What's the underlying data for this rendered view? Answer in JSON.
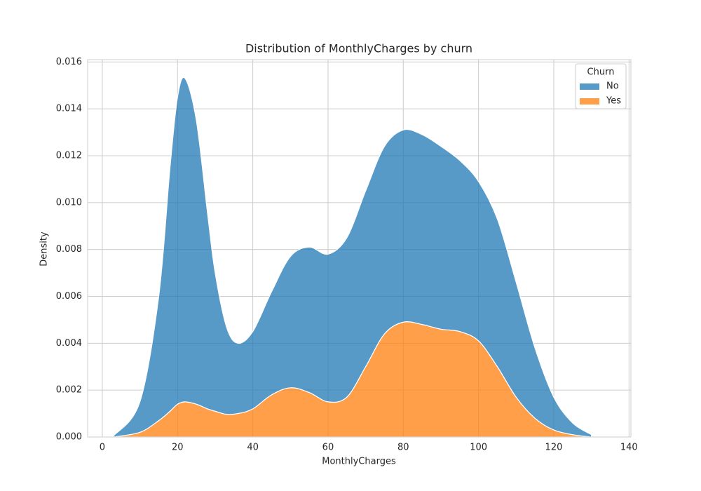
{
  "chart_data": {
    "type": "stacked-area",
    "title": "Distribution of MonthlyCharges by churn",
    "x_label": "MonthlyCharges",
    "y_label": "Density",
    "legend_title": "Churn",
    "legend_position": "upper right",
    "grid": true,
    "x": [
      3,
      10,
      15,
      18,
      20,
      22,
      25,
      28,
      30,
      33,
      36,
      40,
      45,
      50,
      55,
      60,
      65,
      70,
      75,
      80,
      85,
      90,
      95,
      100,
      105,
      110,
      115,
      120,
      125,
      130
    ],
    "series": [
      {
        "name": "No",
        "color": "#1f77b4",
        "values": [
          5e-05,
          0.0013,
          0.0053,
          0.0104,
          0.0131,
          0.0138,
          0.0121,
          0.0083,
          0.0059,
          0.00373,
          0.003,
          0.0033,
          0.0044,
          0.0056,
          0.0062,
          0.0063,
          0.0068,
          0.0075,
          0.008,
          0.0082,
          0.0081,
          0.0078,
          0.0073,
          0.0068,
          0.0063,
          0.0049,
          0.003,
          0.0014,
          0.0005,
          0.0001
        ]
      },
      {
        "name": "Yes",
        "color": "#ff7f0e",
        "values": [
          0,
          0.0002,
          0.0007,
          0.0011,
          0.0014,
          0.0015,
          0.0014,
          0.0012,
          0.0011,
          0.00097,
          0.001,
          0.0012,
          0.0018,
          0.0021,
          0.0019,
          0.0015,
          0.0017,
          0.003,
          0.0044,
          0.0049,
          0.0048,
          0.0046,
          0.0045,
          0.0041,
          0.003,
          0.0017,
          0.0008,
          0.0003,
          0.0001,
          0
        ]
      }
    ],
    "xlim": [
      -3.9,
      140.5
    ],
    "xticks": [
      0,
      20,
      40,
      60,
      80,
      100,
      120,
      140
    ],
    "ylim": [
      0,
      0.0161
    ],
    "yticks": [
      {
        "value": 0,
        "label": "0.000"
      },
      {
        "value": 0.002,
        "label": "0.002"
      },
      {
        "value": 0.004,
        "label": "0.004"
      },
      {
        "value": 0.006,
        "label": "0.006"
      },
      {
        "value": 0.008,
        "label": "0.008"
      },
      {
        "value": 0.01,
        "label": "0.010"
      },
      {
        "value": 0.012,
        "label": "0.012"
      },
      {
        "value": 0.014,
        "label": "0.014"
      },
      {
        "value": 0.016,
        "label": "0.016"
      }
    ]
  }
}
